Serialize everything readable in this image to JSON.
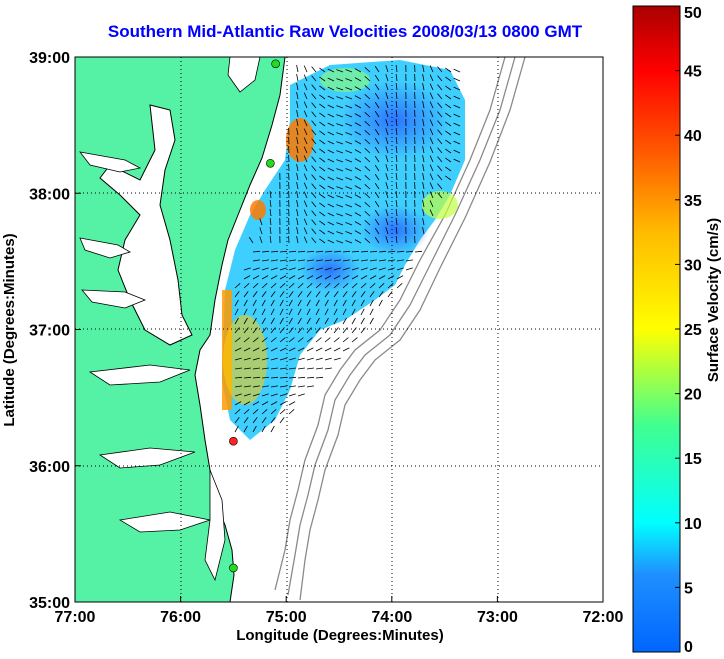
{
  "title": "Southern Mid-Atlantic Raw Velocities 2008/03/13 0800 GMT",
  "chart_data": {
    "type": "map",
    "xlabel": "Longitude (Degrees:Minutes)",
    "ylabel": "Latitude (Degrees:Minutes)",
    "xlim": [
      -77,
      -72
    ],
    "ylim": [
      35,
      39
    ],
    "x_ticks": [
      {
        "value": -77,
        "label": "77:00"
      },
      {
        "value": -76,
        "label": "76:00"
      },
      {
        "value": -75,
        "label": "75:00"
      },
      {
        "value": -74,
        "label": "74:00"
      },
      {
        "value": -73,
        "label": "73:00"
      },
      {
        "value": -72,
        "label": "72:00"
      }
    ],
    "y_ticks": [
      {
        "value": 35,
        "label": "35:00"
      },
      {
        "value": 36,
        "label": "36:00"
      },
      {
        "value": 37,
        "label": "37:00"
      },
      {
        "value": 38,
        "label": "38:00"
      },
      {
        "value": 39,
        "label": "39:00"
      }
    ],
    "grid": "dotted",
    "colorbar": {
      "label": "Surface Velocity (cm/s)",
      "min": 0,
      "max": 50,
      "ticks": [
        {
          "value": 0,
          "label": "0"
        },
        {
          "value": 5,
          "label": "5"
        },
        {
          "value": 10,
          "label": "10"
        },
        {
          "value": 15,
          "label": "15"
        },
        {
          "value": 20,
          "label": "20"
        },
        {
          "value": 25,
          "label": "25"
        },
        {
          "value": 30,
          "label": "30"
        },
        {
          "value": 35,
          "label": "35"
        },
        {
          "value": 40,
          "label": "40"
        },
        {
          "value": 45,
          "label": "45"
        },
        {
          "value": 50,
          "label": "50"
        }
      ],
      "colormap": "jet"
    },
    "colors": {
      "land": "#55f2a6",
      "water": "#ffffff",
      "coastline": "#000000",
      "bathymetry": "#8a8a8a",
      "title": "#0000ff"
    },
    "stations": [
      {
        "lon": -75.1,
        "lat": 38.95,
        "color": "#20dd20"
      },
      {
        "lon": -75.15,
        "lat": 38.22,
        "color": "#20dd20"
      },
      {
        "lon": -75.5,
        "lat": 36.18,
        "color": "#ff2020"
      },
      {
        "lon": -75.5,
        "lat": 35.25,
        "color": "#20dd20"
      }
    ]
  }
}
